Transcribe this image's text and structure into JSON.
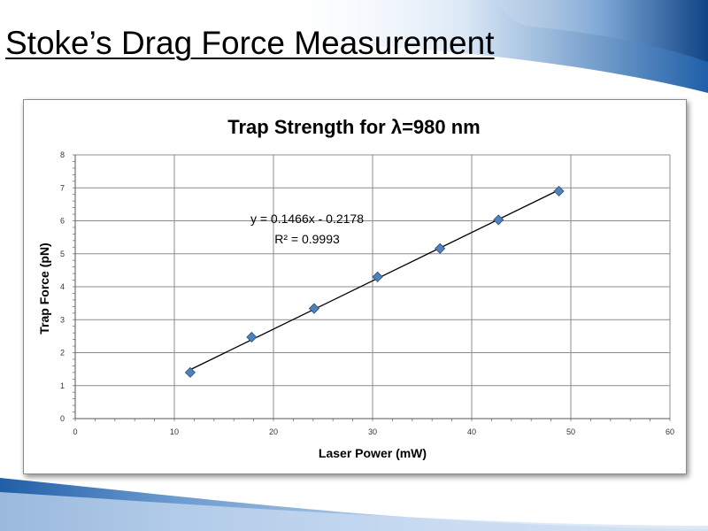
{
  "slide": {
    "title": "Stoke’s Drag Force Measurement"
  },
  "colors": {
    "accent_blue": "#1f5fa8",
    "light_blue": "#cfe0f3",
    "marker_fill": "#4f81bd",
    "marker_stroke": "#2c4d75",
    "trendline": "#000000",
    "grid": "#8c8c8c"
  },
  "chart_data": {
    "type": "scatter",
    "title": "Trap Strength for λ=980 nm",
    "xlabel": "Laser Power (mW)",
    "ylabel": "Trap Force (pN)",
    "xlim": [
      0,
      60
    ],
    "ylim": [
      0,
      8
    ],
    "x_ticks": [
      "0",
      "10",
      "20",
      "30",
      "40",
      "50",
      "60"
    ],
    "y_ticks": [
      "0",
      "1",
      "2",
      "3",
      "4",
      "5",
      "6",
      "7",
      "8"
    ],
    "grid": true,
    "marker": "diamond",
    "series": [
      {
        "points": [
          {
            "x": 11.6,
            "y": 1.4
          },
          {
            "x": 17.8,
            "y": 2.47
          },
          {
            "x": 24.1,
            "y": 3.34
          },
          {
            "x": 30.5,
            "y": 4.3
          },
          {
            "x": 36.8,
            "y": 5.16
          },
          {
            "x": 42.7,
            "y": 6.03
          },
          {
            "x": 48.8,
            "y": 6.9
          }
        ]
      }
    ],
    "trendline": {
      "slope": 0.1466,
      "intercept": -0.2178,
      "x_range": [
        11.6,
        48.8
      ],
      "equation": "y = 0.1466x - 0.2178",
      "r_squared": "R² = 0.9993"
    }
  }
}
